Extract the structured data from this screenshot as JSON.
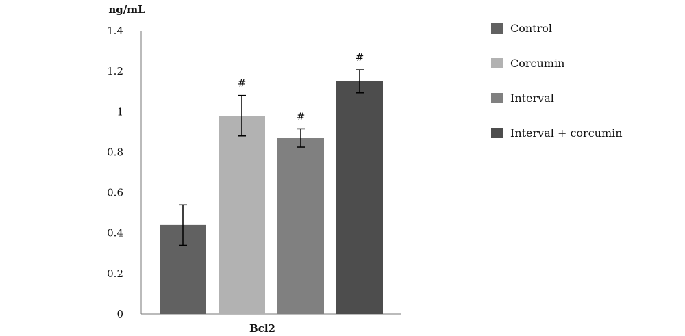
{
  "chart_data": {
    "type": "bar",
    "ylabel": "ng/mL",
    "xlabel": "Bcl2",
    "ylim": [
      0,
      1.4
    ],
    "yticks": [
      0,
      0.2,
      0.4,
      0.6,
      0.8,
      1,
      1.2,
      1.4
    ],
    "ytick_labels": [
      "0",
      "0.2",
      "0.4",
      "0.6",
      "0.8",
      "1",
      "1.2",
      "1.4"
    ],
    "grid": false,
    "legend_position": "right",
    "categories": [
      "Bcl2"
    ],
    "series": [
      {
        "name": "Control",
        "value": 0.44,
        "error": 0.1,
        "annotation": "",
        "color": "#616161"
      },
      {
        "name": "Corcumin",
        "value": 0.98,
        "error": 0.1,
        "annotation": "#",
        "color": "#b2b2b2"
      },
      {
        "name": "Interval",
        "value": 0.87,
        "error": 0.045,
        "annotation": "#",
        "color": "#808080"
      },
      {
        "name": "Interval + corcumin",
        "value": 1.15,
        "error": 0.057,
        "annotation": "#",
        "color": "#4d4d4d"
      }
    ]
  }
}
